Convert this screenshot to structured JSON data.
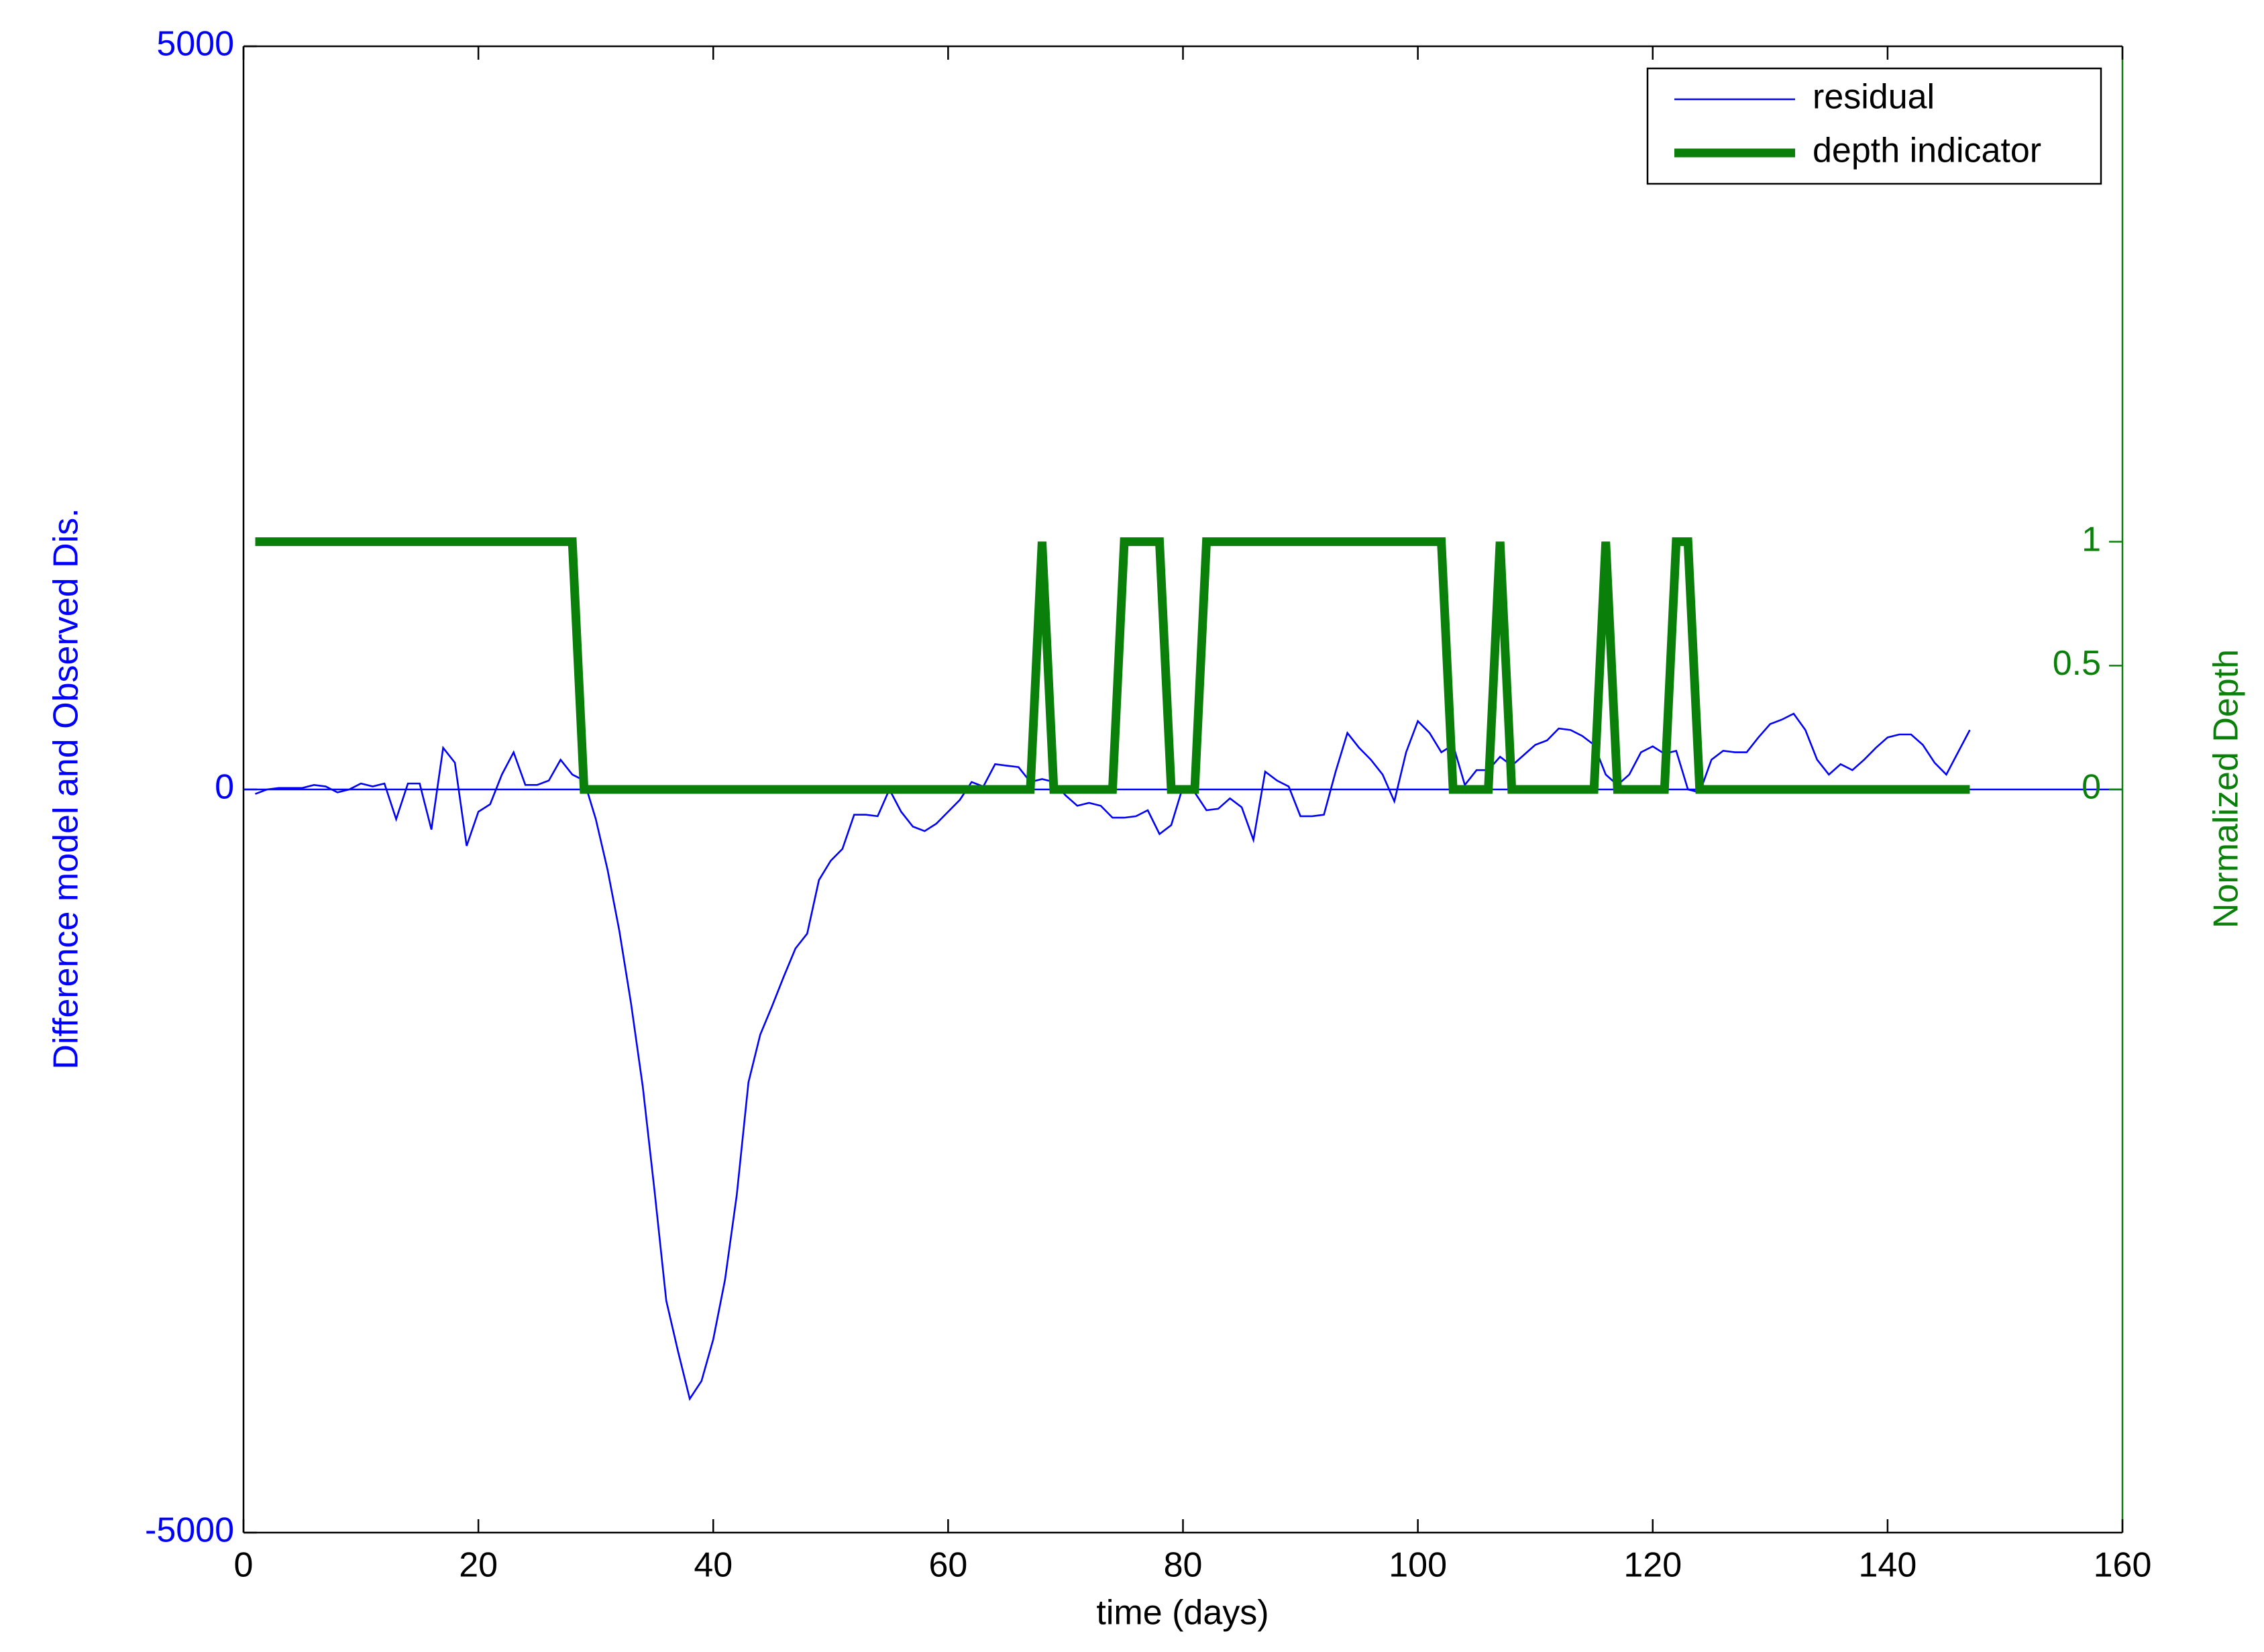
{
  "chart_data": {
    "type": "line",
    "x_label": "time (days)",
    "y_label": "Difference model and Observed Dis.",
    "y2_label": "Normalized Depth",
    "xlim": [
      0,
      160
    ],
    "xticks": [
      0,
      20,
      40,
      60,
      80,
      100,
      120,
      140,
      160
    ],
    "ylim": [
      -5000,
      5000
    ],
    "yticks": [
      -5000,
      0,
      5000
    ],
    "y2lim": [
      -3,
      3
    ],
    "y2ticks": [
      0,
      0.5,
      1
    ],
    "legend": "upper right",
    "x": [
      1,
      2,
      3,
      4,
      5,
      6,
      7,
      8,
      9,
      10,
      11,
      12,
      13,
      14,
      15,
      16,
      17,
      18,
      19,
      20,
      21,
      22,
      23,
      24,
      25,
      26,
      27,
      28,
      29,
      30,
      31,
      32,
      33,
      34,
      35,
      36,
      37,
      38,
      39,
      40,
      41,
      42,
      43,
      44,
      45,
      46,
      47,
      48,
      49,
      50,
      51,
      52,
      53,
      54,
      55,
      56,
      57,
      58,
      59,
      60,
      61,
      62,
      63,
      64,
      65,
      66,
      67,
      68,
      69,
      70,
      71,
      72,
      73,
      74,
      75,
      76,
      77,
      78,
      79,
      80,
      81,
      82,
      83,
      84,
      85,
      86,
      87,
      88,
      89,
      90,
      91,
      92,
      93,
      94,
      95,
      96,
      97,
      98,
      99,
      100,
      101,
      102,
      103,
      104,
      105,
      106,
      107,
      108,
      109,
      110,
      111,
      112,
      113,
      114,
      115,
      116,
      117,
      118,
      119,
      120,
      121,
      122,
      123,
      124,
      125,
      126,
      127,
      128,
      129,
      130,
      131,
      132,
      133,
      134,
      135,
      136,
      137,
      138,
      139,
      140,
      141,
      142,
      143,
      144,
      145,
      146,
      147
    ],
    "series": [
      {
        "name": "residual",
        "color": "#0000ff",
        "width": 2.6,
        "values": [
          -30,
          0,
          10,
          10,
          10,
          30,
          20,
          -20,
          0,
          40,
          20,
          40,
          -200,
          40,
          40,
          -270,
          280,
          180,
          -380,
          -150,
          -100,
          100,
          250,
          30,
          30,
          60,
          200,
          100,
          60,
          -200,
          -540,
          -950,
          -1440,
          -2000,
          -2700,
          -3440,
          -3780,
          -4100,
          -3980,
          -3700,
          -3300,
          -2730,
          -1970,
          -1650,
          -1460,
          -1260,
          -1070,
          -970,
          -610,
          -480,
          -400,
          -170,
          -170,
          -180,
          0,
          -150,
          -250,
          -280,
          -230,
          -150,
          -70,
          50,
          20,
          170,
          160,
          150,
          50,
          70,
          50,
          -40,
          -110,
          -90,
          -110,
          -190,
          -190,
          -180,
          -140,
          -300,
          -240,
          20,
          -20,
          -140,
          -130,
          -60,
          -120,
          -340,
          120,
          60,
          20,
          -180,
          -180,
          -170,
          120,
          380,
          280,
          200,
          100,
          -80,
          250,
          460,
          380,
          250,
          300,
          30,
          130,
          130,
          220,
          160,
          230,
          300,
          330,
          410,
          400,
          360,
          300,
          100,
          30,
          100,
          250,
          290,
          240,
          260,
          0,
          -20,
          200,
          260,
          250,
          250,
          350,
          440,
          470,
          510,
          400,
          200,
          100,
          170,
          130,
          200,
          280,
          350,
          370,
          370,
          300,
          180,
          100,
          250,
          400
        ]
      },
      {
        "name": "depth indicator",
        "color": "#0a800a",
        "width": 13,
        "axis": "y2",
        "values": [
          1,
          1,
          1,
          1,
          1,
          1,
          1,
          1,
          1,
          1,
          1,
          1,
          1,
          1,
          1,
          1,
          1,
          1,
          1,
          1,
          1,
          1,
          1,
          1,
          1,
          1,
          1,
          1,
          0,
          0,
          0,
          0,
          0,
          0,
          0,
          0,
          0,
          0,
          0,
          0,
          0,
          0,
          0,
          0,
          0,
          0,
          0,
          0,
          0,
          0,
          0,
          0,
          0,
          0,
          0,
          0,
          0,
          0,
          0,
          0,
          0,
          0,
          0,
          0,
          0,
          0,
          0,
          1,
          0,
          0,
          0,
          0,
          0,
          0,
          1,
          1,
          1,
          1,
          0,
          0,
          0,
          1,
          1,
          1,
          1,
          1,
          1,
          1,
          1,
          1,
          1,
          1,
          1,
          1,
          1,
          1,
          1,
          1,
          1,
          1,
          1,
          1,
          0,
          0,
          0,
          0,
          1,
          0,
          0,
          0,
          0,
          0,
          0,
          0,
          0,
          1,
          0,
          0,
          0,
          0,
          0,
          1,
          1,
          0,
          0,
          0,
          0,
          0,
          0,
          0,
          0,
          0,
          0,
          0,
          0,
          0,
          0,
          0,
          0,
          0,
          0,
          0,
          0,
          0,
          0,
          0,
          0
        ]
      }
    ]
  }
}
